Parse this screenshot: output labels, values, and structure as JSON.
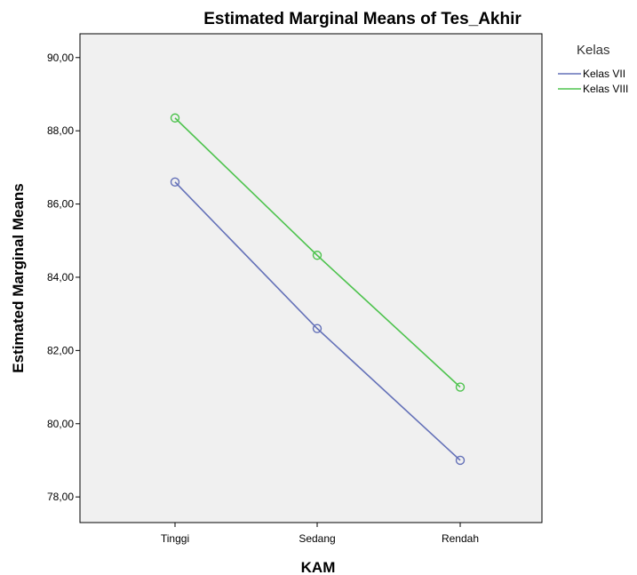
{
  "chart_data": {
    "type": "line",
    "title": "Estimated Marginal Means of Tes_Akhir",
    "xlabel": "KAM",
    "ylabel": "Estimated Marginal Means",
    "categories": [
      "Tinggi",
      "Sedang",
      "Rendah"
    ],
    "ylim": [
      77.3,
      90.65
    ],
    "yticks": [
      78,
      80,
      82,
      84,
      86,
      88,
      90
    ],
    "ytick_labels": [
      "78,00",
      "80,00",
      "82,00",
      "84,00",
      "86,00",
      "88,00",
      "90,00"
    ],
    "legend_title": "Kelas",
    "legend_position": "right-outside-top",
    "grid": false,
    "background_color": "#f0f0f0",
    "series": [
      {
        "name": "Kelas VII",
        "values": [
          86.6,
          82.6,
          79.0
        ],
        "color": "#6471b8"
      },
      {
        "name": "Kelas VIII",
        "values": [
          88.35,
          84.6,
          81.0
        ],
        "color": "#4ec34e"
      }
    ]
  }
}
